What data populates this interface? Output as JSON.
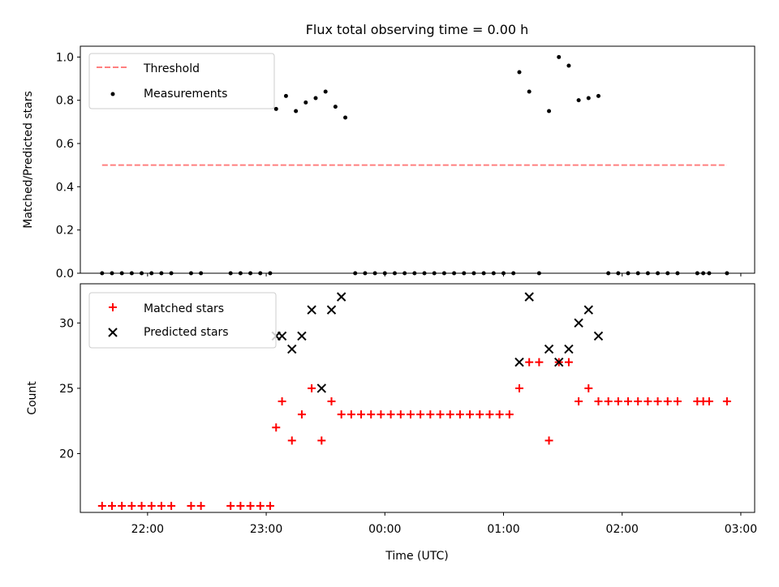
{
  "chart_data": {
    "title": "Flux total observing time = 0.00 h",
    "xlabel": "Time (UTC)",
    "x_unit": "time (UTC), evening of day 1 to morning of day 2",
    "x_ticks": [
      "22:00",
      "23:00",
      "00:00",
      "01:00",
      "02:00",
      "03:00"
    ],
    "xlim": [
      "21:26",
      "03:07"
    ],
    "panels": [
      {
        "type": "scatter",
        "ylabel": "Matched/Predicted stars",
        "ylim": [
          0,
          1.05
        ],
        "y_ticks": [
          "0.0",
          "0.2",
          "0.4",
          "0.6",
          "0.8",
          "1.0"
        ],
        "legend_position": "top-left",
        "series": [
          {
            "name": "Threshold",
            "style": "dashed-line",
            "color": "#ff7f7f",
            "points": [
              {
                "x": "21:37",
                "y": 0.5
              },
              {
                "x": "02:53",
                "y": 0.5
              }
            ]
          },
          {
            "name": "Measurements",
            "style": "dot",
            "color": "#000000",
            "points": [
              {
                "x": "21:37",
                "y": 0.0
              },
              {
                "x": "21:42",
                "y": 0.0
              },
              {
                "x": "21:47",
                "y": 0.0
              },
              {
                "x": "21:52",
                "y": 0.0
              },
              {
                "x": "21:57",
                "y": 0.0
              },
              {
                "x": "22:02",
                "y": 0.0
              },
              {
                "x": "22:07",
                "y": 0.0
              },
              {
                "x": "22:12",
                "y": 0.0
              },
              {
                "x": "22:22",
                "y": 0.0
              },
              {
                "x": "22:27",
                "y": 0.0
              },
              {
                "x": "22:42",
                "y": 0.0
              },
              {
                "x": "22:47",
                "y": 0.0
              },
              {
                "x": "22:52",
                "y": 0.0
              },
              {
                "x": "22:57",
                "y": 0.0
              },
              {
                "x": "23:02",
                "y": 0.0
              },
              {
                "x": "23:05",
                "y": 0.76
              },
              {
                "x": "23:10",
                "y": 0.82
              },
              {
                "x": "23:15",
                "y": 0.75
              },
              {
                "x": "23:20",
                "y": 0.79
              },
              {
                "x": "23:25",
                "y": 0.81
              },
              {
                "x": "23:30",
                "y": 0.84
              },
              {
                "x": "23:35",
                "y": 0.77
              },
              {
                "x": "23:40",
                "y": 0.72
              },
              {
                "x": "23:45",
                "y": 0.0
              },
              {
                "x": "23:50",
                "y": 0.0
              },
              {
                "x": "23:55",
                "y": 0.0
              },
              {
                "x": "00:00",
                "y": 0.0
              },
              {
                "x": "00:05",
                "y": 0.0
              },
              {
                "x": "00:10",
                "y": 0.0
              },
              {
                "x": "00:15",
                "y": 0.0
              },
              {
                "x": "00:20",
                "y": 0.0
              },
              {
                "x": "00:25",
                "y": 0.0
              },
              {
                "x": "00:30",
                "y": 0.0
              },
              {
                "x": "00:35",
                "y": 0.0
              },
              {
                "x": "00:40",
                "y": 0.0
              },
              {
                "x": "00:45",
                "y": 0.0
              },
              {
                "x": "00:50",
                "y": 0.0
              },
              {
                "x": "00:55",
                "y": 0.0
              },
              {
                "x": "01:00",
                "y": 0.0
              },
              {
                "x": "01:05",
                "y": 0.0
              },
              {
                "x": "01:08",
                "y": 0.93
              },
              {
                "x": "01:13",
                "y": 0.84
              },
              {
                "x": "01:18",
                "y": 0.0
              },
              {
                "x": "01:23",
                "y": 0.75
              },
              {
                "x": "01:28",
                "y": 1.0
              },
              {
                "x": "01:33",
                "y": 0.96
              },
              {
                "x": "01:38",
                "y": 0.8
              },
              {
                "x": "01:43",
                "y": 0.81
              },
              {
                "x": "01:48",
                "y": 0.82
              },
              {
                "x": "01:53",
                "y": 0.0
              },
              {
                "x": "01:58",
                "y": 0.0
              },
              {
                "x": "02:03",
                "y": 0.0
              },
              {
                "x": "02:08",
                "y": 0.0
              },
              {
                "x": "02:13",
                "y": 0.0
              },
              {
                "x": "02:18",
                "y": 0.0
              },
              {
                "x": "02:23",
                "y": 0.0
              },
              {
                "x": "02:28",
                "y": 0.0
              },
              {
                "x": "02:38",
                "y": 0.0
              },
              {
                "x": "02:41",
                "y": 0.0
              },
              {
                "x": "02:44",
                "y": 0.0
              },
              {
                "x": "02:53",
                "y": 0.0
              }
            ]
          }
        ]
      },
      {
        "type": "scatter",
        "ylabel": "Count",
        "ylim": [
          15.5,
          33
        ],
        "y_ticks": [
          "20",
          "25",
          "30"
        ],
        "legend_position": "top-left",
        "series": [
          {
            "name": "Matched stars",
            "style": "plus",
            "color": "#ff0000",
            "points": [
              {
                "x": "21:37",
                "y": 16
              },
              {
                "x": "21:42",
                "y": 16
              },
              {
                "x": "21:47",
                "y": 16
              },
              {
                "x": "21:52",
                "y": 16
              },
              {
                "x": "21:57",
                "y": 16
              },
              {
                "x": "22:02",
                "y": 16
              },
              {
                "x": "22:07",
                "y": 16
              },
              {
                "x": "22:12",
                "y": 16
              },
              {
                "x": "22:22",
                "y": 16
              },
              {
                "x": "22:27",
                "y": 16
              },
              {
                "x": "22:42",
                "y": 16
              },
              {
                "x": "22:47",
                "y": 16
              },
              {
                "x": "22:52",
                "y": 16
              },
              {
                "x": "22:57",
                "y": 16
              },
              {
                "x": "23:02",
                "y": 16
              },
              {
                "x": "23:05",
                "y": 22
              },
              {
                "x": "23:08",
                "y": 24
              },
              {
                "x": "23:13",
                "y": 21
              },
              {
                "x": "23:18",
                "y": 23
              },
              {
                "x": "23:23",
                "y": 25
              },
              {
                "x": "23:28",
                "y": 21
              },
              {
                "x": "23:33",
                "y": 24
              },
              {
                "x": "23:38",
                "y": 23
              },
              {
                "x": "23:43",
                "y": 23
              },
              {
                "x": "23:48",
                "y": 23
              },
              {
                "x": "23:53",
                "y": 23
              },
              {
                "x": "23:58",
                "y": 23
              },
              {
                "x": "00:03",
                "y": 23
              },
              {
                "x": "00:08",
                "y": 23
              },
              {
                "x": "00:13",
                "y": 23
              },
              {
                "x": "00:18",
                "y": 23
              },
              {
                "x": "00:23",
                "y": 23
              },
              {
                "x": "00:28",
                "y": 23
              },
              {
                "x": "00:33",
                "y": 23
              },
              {
                "x": "00:38",
                "y": 23
              },
              {
                "x": "00:43",
                "y": 23
              },
              {
                "x": "00:48",
                "y": 23
              },
              {
                "x": "00:53",
                "y": 23
              },
              {
                "x": "00:58",
                "y": 23
              },
              {
                "x": "01:03",
                "y": 23
              },
              {
                "x": "01:08",
                "y": 25
              },
              {
                "x": "01:13",
                "y": 27
              },
              {
                "x": "01:18",
                "y": 27
              },
              {
                "x": "01:23",
                "y": 21
              },
              {
                "x": "01:28",
                "y": 27
              },
              {
                "x": "01:33",
                "y": 27
              },
              {
                "x": "01:38",
                "y": 24
              },
              {
                "x": "01:43",
                "y": 25
              },
              {
                "x": "01:48",
                "y": 24
              },
              {
                "x": "01:53",
                "y": 24
              },
              {
                "x": "01:58",
                "y": 24
              },
              {
                "x": "02:03",
                "y": 24
              },
              {
                "x": "02:08",
                "y": 24
              },
              {
                "x": "02:13",
                "y": 24
              },
              {
                "x": "02:18",
                "y": 24
              },
              {
                "x": "02:23",
                "y": 24
              },
              {
                "x": "02:28",
                "y": 24
              },
              {
                "x": "02:38",
                "y": 24
              },
              {
                "x": "02:41",
                "y": 24
              },
              {
                "x": "02:44",
                "y": 24
              },
              {
                "x": "02:53",
                "y": 24
              }
            ]
          },
          {
            "name": "Predicted stars",
            "style": "x",
            "color": "#000000",
            "points": [
              {
                "x": "23:05",
                "y": 29
              },
              {
                "x": "23:08",
                "y": 29
              },
              {
                "x": "23:13",
                "y": 28
              },
              {
                "x": "23:18",
                "y": 29
              },
              {
                "x": "23:23",
                "y": 31
              },
              {
                "x": "23:28",
                "y": 25
              },
              {
                "x": "23:33",
                "y": 31
              },
              {
                "x": "23:38",
                "y": 32
              },
              {
                "x": "01:08",
                "y": 27
              },
              {
                "x": "01:13",
                "y": 32
              },
              {
                "x": "01:23",
                "y": 28
              },
              {
                "x": "01:28",
                "y": 27
              },
              {
                "x": "01:33",
                "y": 28
              },
              {
                "x": "01:38",
                "y": 30
              },
              {
                "x": "01:43",
                "y": 31
              },
              {
                "x": "01:48",
                "y": 29
              }
            ]
          }
        ]
      }
    ]
  }
}
